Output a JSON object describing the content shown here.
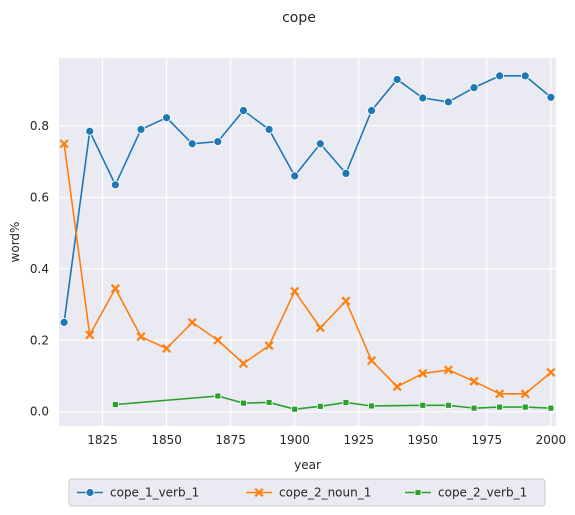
{
  "chart_data": {
    "type": "line",
    "title": "cope",
    "xlabel": "year",
    "ylabel": "word%",
    "xlim": [
      1808,
      2002
    ],
    "ylim": [
      -0.04,
      0.99
    ],
    "xticks": [
      1825,
      1850,
      1875,
      1900,
      1925,
      1950,
      1975,
      2000
    ],
    "yticks": [
      0.0,
      0.2,
      0.4,
      0.6,
      0.8
    ],
    "xtick_labels": [
      "1825",
      "1850",
      "1875",
      "1900",
      "1925",
      "1950",
      "1975",
      "2000"
    ],
    "ytick_labels": [
      "0.0",
      "0.2",
      "0.4",
      "0.6",
      "0.8"
    ],
    "grid": true,
    "legend_position": "bottom-center",
    "series": [
      {
        "name": "cope_1_verb_1",
        "color": "#1f77b4",
        "marker": "circle",
        "x": [
          1810,
          1820,
          1830,
          1840,
          1850,
          1860,
          1870,
          1880,
          1890,
          1900,
          1910,
          1920,
          1930,
          1940,
          1950,
          1960,
          1970,
          1980,
          1990,
          2000
        ],
        "y": [
          0.25,
          0.785,
          0.635,
          0.79,
          0.823,
          0.75,
          0.756,
          0.843,
          0.79,
          0.66,
          0.75,
          0.667,
          0.843,
          0.93,
          0.878,
          0.867,
          0.907,
          0.94,
          0.94,
          0.88
        ]
      },
      {
        "name": "cope_2_noun_1",
        "color": "#ff7f0e",
        "marker": "x",
        "x": [
          1810,
          1820,
          1830,
          1840,
          1850,
          1860,
          1870,
          1880,
          1890,
          1900,
          1910,
          1920,
          1930,
          1940,
          1950,
          1960,
          1970,
          1980,
          1990,
          2000
        ],
        "y": [
          0.75,
          0.215,
          0.345,
          0.21,
          0.177,
          0.25,
          0.2,
          0.135,
          0.185,
          0.337,
          0.235,
          0.31,
          0.143,
          0.07,
          0.107,
          0.117,
          0.085,
          0.05,
          0.05,
          0.11
        ]
      },
      {
        "name": "cope_2_verb_1",
        "color": "#2ca02c",
        "marker": "square",
        "x": [
          1830,
          1870,
          1880,
          1890,
          1900,
          1910,
          1920,
          1930,
          1950,
          1960,
          1970,
          1980,
          1990,
          2000
        ],
        "y": [
          0.02,
          0.044,
          0.024,
          0.026,
          0.007,
          0.015,
          0.026,
          0.016,
          0.018,
          0.018,
          0.01,
          0.013,
          0.013,
          0.01
        ]
      }
    ]
  }
}
